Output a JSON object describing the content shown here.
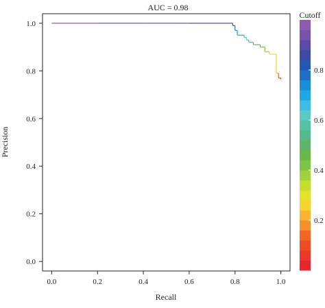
{
  "chart_data": {
    "type": "line",
    "title": "AUC = 0.98",
    "xlabel": "Recall",
    "ylabel": "Precision",
    "xlim": [
      -0.04,
      1.04
    ],
    "ylim": [
      -0.04,
      1.04
    ],
    "xticks": [
      0.0,
      0.2,
      0.4,
      0.6,
      0.8,
      1.0
    ],
    "xtick_labels": [
      "0.0",
      "0.2",
      "0.4",
      "0.6",
      "0.8",
      "1.0"
    ],
    "yticks": [
      0.0,
      0.2,
      0.4,
      0.6,
      0.8,
      1.0
    ],
    "ytick_labels": [
      "0.0",
      "0.2",
      "0.4",
      "0.6",
      "0.8",
      "1.0"
    ],
    "grid": false,
    "series": [
      {
        "points": [
          [
            0.0,
            1.0,
            0.98
          ],
          [
            0.2,
            1.0,
            0.95
          ],
          [
            0.4,
            1.0,
            0.93
          ],
          [
            0.6,
            1.0,
            0.91
          ],
          [
            0.79,
            1.0,
            0.89
          ],
          [
            0.79,
            0.99,
            0.82
          ],
          [
            0.8,
            0.99,
            0.78
          ],
          [
            0.8,
            0.97,
            0.75
          ],
          [
            0.81,
            0.97,
            0.73
          ],
          [
            0.81,
            0.95,
            0.7
          ],
          [
            0.84,
            0.95,
            0.68
          ],
          [
            0.84,
            0.94,
            0.66
          ],
          [
            0.85,
            0.94,
            0.63
          ],
          [
            0.85,
            0.93,
            0.61
          ],
          [
            0.86,
            0.93,
            0.58
          ],
          [
            0.86,
            0.92,
            0.56
          ],
          [
            0.88,
            0.92,
            0.53
          ],
          [
            0.88,
            0.91,
            0.5
          ],
          [
            0.91,
            0.91,
            0.47
          ],
          [
            0.91,
            0.9,
            0.45
          ],
          [
            0.93,
            0.9,
            0.42
          ],
          [
            0.93,
            0.88,
            0.38
          ],
          [
            0.95,
            0.88,
            0.35
          ],
          [
            0.95,
            0.87,
            0.3
          ],
          [
            0.98,
            0.87,
            0.26
          ],
          [
            0.98,
            0.79,
            0.22
          ],
          [
            0.99,
            0.79,
            0.18
          ],
          [
            0.99,
            0.77,
            0.13
          ],
          [
            1.0,
            0.77,
            0.08
          ],
          [
            1.0,
            0.765,
            0.03
          ]
        ]
      }
    ],
    "colorbar": {
      "title": "Cutoff",
      "range": [
        0.0,
        1.0
      ],
      "ticks": [
        0.2,
        0.4,
        0.6,
        0.8
      ],
      "tick_labels": [
        "0.2",
        "0.4",
        "0.6",
        "0.8"
      ],
      "colors": [
        "#e8262c",
        "#eb3828",
        "#ee4c24",
        "#f26723",
        "#f6902a",
        "#f8b32f",
        "#f4d42f",
        "#e3e129",
        "#c6dd2b",
        "#9fd23a",
        "#7cc444",
        "#6ab84a",
        "#5fb46a",
        "#57b98a",
        "#58c0a7",
        "#5bc9c4",
        "#3dbde4",
        "#1fa7e1",
        "#1a8dd8",
        "#1f70c4",
        "#2358b6",
        "#3e4aa8",
        "#5a4bab",
        "#7653ac",
        "#8e5bb0"
      ]
    }
  }
}
